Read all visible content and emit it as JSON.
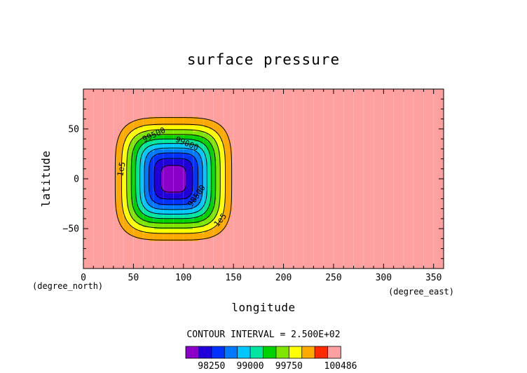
{
  "chart_data": {
    "type": "heatmap",
    "title": "surface pressure",
    "xlabel": "longitude",
    "ylabel": "latitude",
    "x_units": "(degree_east)",
    "y_units": "(degree_north)",
    "xlim": [
      0,
      360
    ],
    "ylim": [
      -90,
      90
    ],
    "xticks": [
      0,
      50,
      100,
      150,
      200,
      250,
      300,
      350
    ],
    "yticks": [
      -50,
      0,
      50
    ],
    "field": {
      "background": 100486,
      "minimum": 97800,
      "center_lon": 90,
      "center_lat": 0,
      "half_width_lon": 72,
      "half_width_lat": 76
    },
    "contour_interval_label": "CONTOUR INTERVAL = 2.500E+02",
    "levels": [
      98000,
      98250,
      98500,
      98750,
      99000,
      99250,
      99500,
      99750,
      100000,
      100250
    ],
    "contour_labels": [
      {
        "text": "99500",
        "level": 99500
      },
      {
        "text": "99000",
        "level": 99000
      },
      {
        "text": "98500",
        "level": 98500
      },
      {
        "text": "1e5",
        "level": 100000
      },
      {
        "text": "1e5",
        "level": 100000
      }
    ],
    "colorbar": {
      "colors": [
        "#8a00c8",
        "#2000d8",
        "#0032ff",
        "#0078ff",
        "#00c8ff",
        "#00e6a0",
        "#00d200",
        "#7ee600",
        "#ffff00",
        "#ffaa00",
        "#ff2a00",
        "#ffa0a0"
      ],
      "tick_labels": [
        "98250",
        "99000",
        "99750",
        "100486"
      ]
    }
  }
}
